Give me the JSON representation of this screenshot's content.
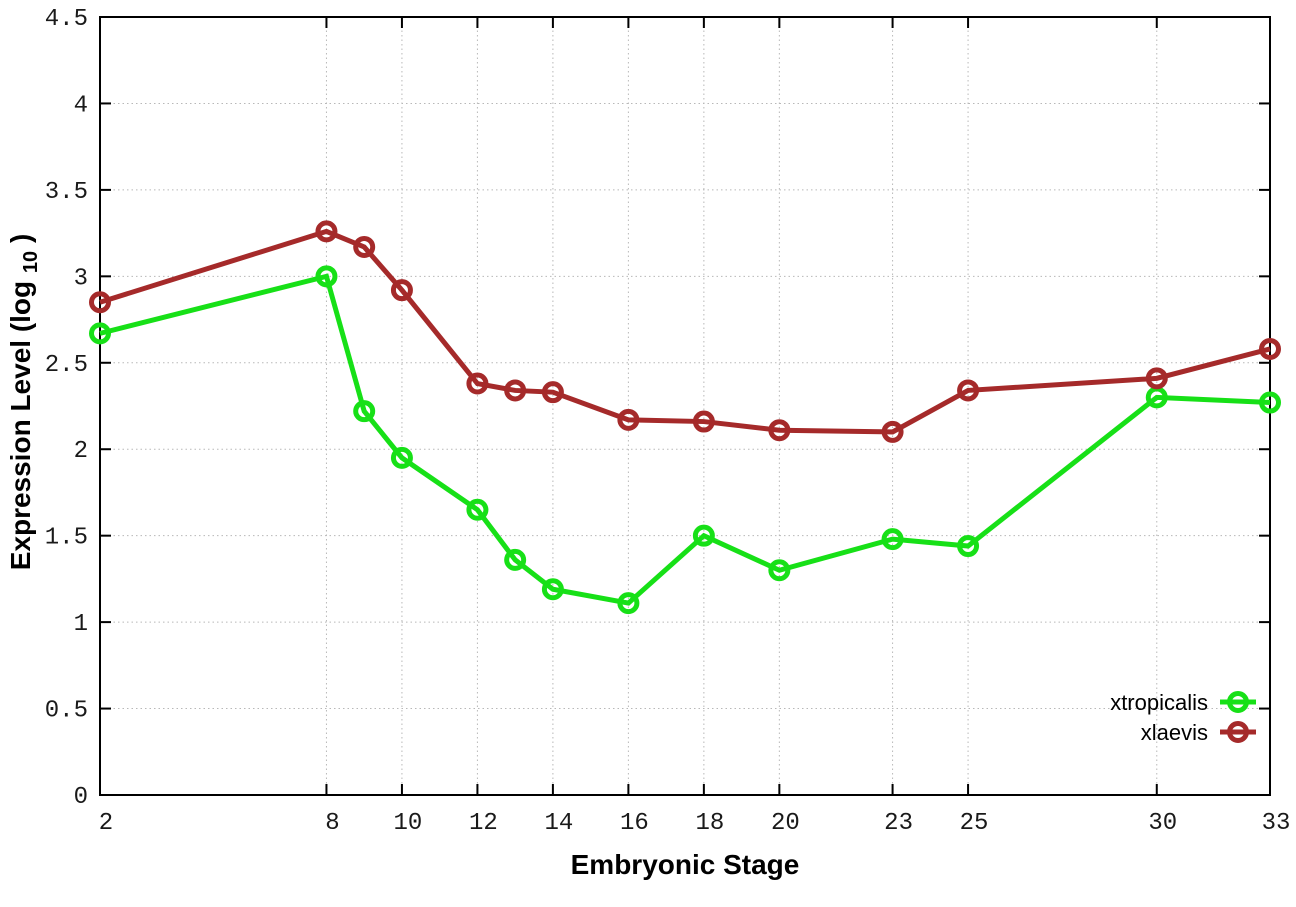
{
  "figure": {
    "background": "#ffffff",
    "border_color": "#000000",
    "grid_color": "#b8b8b8",
    "tick_label_color": "#1a1a1a"
  },
  "chart_data": {
    "type": "line",
    "title": "",
    "xlabel": "Embryonic Stage",
    "ylabel": "Expression Level (log10)",
    "ylabel_parts": {
      "prefix": "Expression Level (log",
      "subscript": "10",
      "suffix": ")"
    },
    "xlim": [
      2,
      33
    ],
    "ylim": [
      0,
      4.5
    ],
    "x_ticks": [
      2,
      8,
      10,
      12,
      14,
      16,
      18,
      20,
      23,
      25,
      30,
      33
    ],
    "x_tick_labels": [
      "2",
      "8",
      "10",
      "12",
      "14",
      "16",
      "18",
      "20",
      "23",
      "25",
      "30",
      "33"
    ],
    "y_ticks": [
      0,
      0.5,
      1,
      1.5,
      2,
      2.5,
      3,
      3.5,
      4,
      4.5
    ],
    "y_tick_labels": [
      "0",
      "0.5",
      "1",
      "1.5",
      "2",
      "2.5",
      "3",
      "3.5",
      "4",
      "4.5"
    ],
    "grid": true,
    "grid_style": "dotted",
    "marker": "open-circle",
    "legend_position": "bottom-right-inside",
    "x": [
      2,
      8,
      9,
      10,
      12,
      13,
      14,
      16,
      18,
      20,
      23,
      25,
      30,
      33
    ],
    "series": [
      {
        "name": "xtropicalis",
        "color": "#17e017",
        "values": [
          2.67,
          3.0,
          2.22,
          1.95,
          1.65,
          1.36,
          1.19,
          1.11,
          1.5,
          1.3,
          1.48,
          1.44,
          2.3,
          2.27
        ]
      },
      {
        "name": "xlaevis",
        "color": "#a52a2a",
        "values": [
          2.85,
          3.26,
          3.17,
          2.92,
          2.38,
          2.34,
          2.33,
          2.17,
          2.16,
          2.11,
          2.1,
          2.34,
          2.41,
          2.58
        ]
      }
    ]
  }
}
